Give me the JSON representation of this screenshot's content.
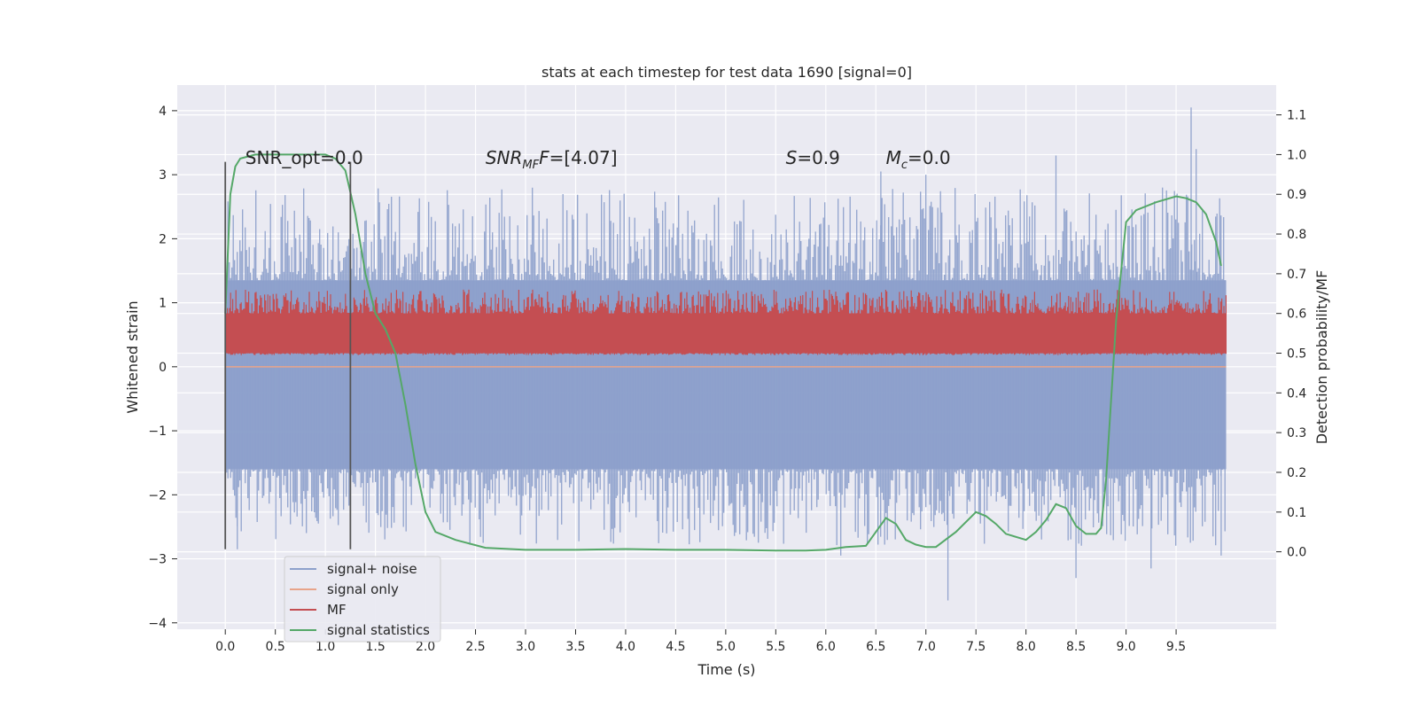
{
  "chart_data": {
    "type": "line",
    "title": "stats at each timestep for test data 1690 [signal=0]",
    "xlabel": "Time (s)",
    "ylabel_left": "Whitened strain",
    "ylabel_right": "Detection probability/MF",
    "xlim": [
      -0.48,
      10.5
    ],
    "ylim_left": [
      -4.1,
      4.4
    ],
    "ylim_right": [
      -0.195,
      1.175
    ],
    "grid": true,
    "xticks": [
      "0.0",
      "0.5",
      "1.0",
      "1.5",
      "2.0",
      "2.5",
      "3.0",
      "3.5",
      "4.0",
      "4.5",
      "5.0",
      "5.5",
      "6.0",
      "6.5",
      "7.0",
      "7.5",
      "8.0",
      "8.5",
      "9.0",
      "9.5"
    ],
    "yticks_left": [
      "−4",
      "−3",
      "−2",
      "−1",
      "0",
      "1",
      "2",
      "3",
      "4"
    ],
    "yticks_right": [
      "0.0",
      "0.1",
      "0.2",
      "0.3",
      "0.4",
      "0.5",
      "0.6",
      "0.7",
      "0.8",
      "0.9",
      "1.0",
      "1.1"
    ],
    "annotations": [
      {
        "text": "SNR_opt=0.0",
        "x": 0.2,
        "y": 3.25
      },
      {
        "html": "<tspan font-style=\"italic\">SNR</tspan><tspan font-style=\"italic\" font-size=\"13\" dy=\"5\">MF</tspan><tspan font-style=\"italic\" dy=\"-5\">F</tspan>=[4.07]",
        "x": 2.6,
        "y": 3.25
      },
      {
        "html": "<tspan font-style=\"italic\">S</tspan>=0.9",
        "x": 5.6,
        "y": 3.25
      },
      {
        "html": "<tspan font-style=\"italic\">M</tspan><tspan font-style=\"italic\" font-size=\"13\" dy=\"5\">c</tspan><tspan dy=\"-5\">=0.0</tspan>",
        "x": 6.6,
        "y": 3.25
      }
    ],
    "vlines": [
      {
        "x": 0.0,
        "y0": -2.85,
        "y1": 3.2
      },
      {
        "x": 1.25,
        "y0": -2.85,
        "y1": 3.2
      }
    ],
    "legend": {
      "position": "lower-left",
      "entries": [
        {
          "label": "signal+ noise",
          "color": "#8da0cb"
        },
        {
          "label": "signal only",
          "color": "#e8a48a"
        },
        {
          "label": "MF",
          "color": "#c44e52"
        },
        {
          "label": "signal statistics",
          "color": "#55a868"
        }
      ]
    },
    "series": [
      {
        "name": "signal+ noise",
        "axis": "left",
        "color": "#8da0cb",
        "x_range": [
          0,
          10
        ],
        "band": [
          -1.6,
          1.35
        ],
        "peaks_up": [
          [
            9.65,
            4.05
          ],
          [
            8.3,
            3.3
          ],
          [
            9.7,
            3.4
          ],
          [
            6.55,
            3.05
          ],
          [
            7.0,
            3.0
          ]
        ],
        "peaks_down": [
          [
            7.22,
            -3.65
          ],
          [
            8.5,
            -3.3
          ],
          [
            9.25,
            -3.15
          ],
          [
            6.15,
            -2.95
          ],
          [
            9.95,
            -2.95
          ],
          [
            0.12,
            -2.85
          ]
        ]
      },
      {
        "name": "signal only",
        "axis": "left",
        "color": "#e8a48a",
        "x": [
          0,
          10
        ],
        "y": [
          0.0,
          0.0
        ]
      },
      {
        "name": "MF",
        "axis": "right",
        "color": "#c44e52",
        "x_range": [
          0,
          10
        ],
        "band": [
          0.5,
          0.6
        ]
      },
      {
        "name": "signal statistics",
        "axis": "right",
        "color": "#55a868",
        "x": [
          0.0,
          0.05,
          0.1,
          0.15,
          0.3,
          0.6,
          0.8,
          1.0,
          1.1,
          1.2,
          1.3,
          1.4,
          1.5,
          1.6,
          1.7,
          1.8,
          1.9,
          2.0,
          2.1,
          2.3,
          2.6,
          3.0,
          3.5,
          4.0,
          4.5,
          5.0,
          5.5,
          5.8,
          6.0,
          6.2,
          6.4,
          6.5,
          6.6,
          6.7,
          6.8,
          6.9,
          7.0,
          7.1,
          7.3,
          7.5,
          7.6,
          7.7,
          7.8,
          8.0,
          8.1,
          8.2,
          8.3,
          8.4,
          8.5,
          8.6,
          8.7,
          8.75,
          8.8,
          8.9,
          9.0,
          9.1,
          9.3,
          9.5,
          9.6,
          9.7,
          9.8,
          9.9,
          9.95
        ],
        "y": [
          0.6,
          0.9,
          0.97,
          0.99,
          1.0,
          1.0,
          1.0,
          1.0,
          0.99,
          0.96,
          0.85,
          0.7,
          0.6,
          0.56,
          0.5,
          0.37,
          0.22,
          0.1,
          0.05,
          0.03,
          0.01,
          0.005,
          0.005,
          0.007,
          0.005,
          0.005,
          0.003,
          0.003,
          0.005,
          0.012,
          0.015,
          0.05,
          0.085,
          0.07,
          0.03,
          0.018,
          0.012,
          0.012,
          0.05,
          0.1,
          0.09,
          0.07,
          0.045,
          0.03,
          0.05,
          0.08,
          0.12,
          0.11,
          0.065,
          0.045,
          0.045,
          0.06,
          0.18,
          0.58,
          0.83,
          0.86,
          0.88,
          0.895,
          0.89,
          0.88,
          0.85,
          0.78,
          0.72
        ]
      }
    ]
  }
}
